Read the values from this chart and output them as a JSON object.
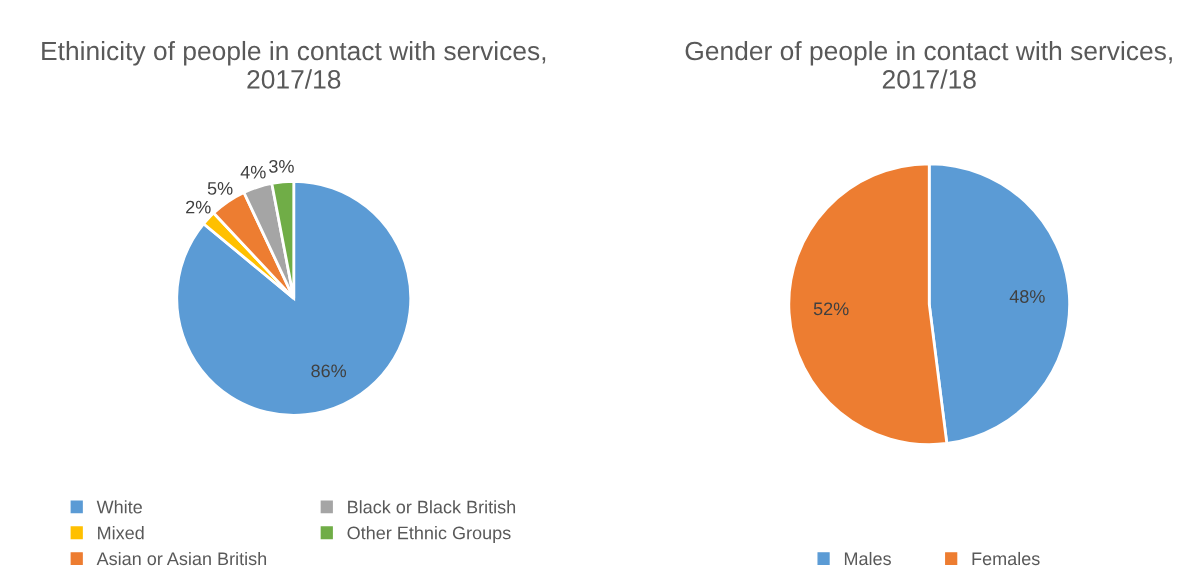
{
  "chart_data": [
    {
      "type": "pie",
      "title": "Ethinicity of people in contact with services, 2017/18",
      "categories": [
        "White",
        "Mixed",
        "Asian or Asian British",
        "Black or Black British",
        "Other Ethnic Groups"
      ],
      "values": [
        86,
        2,
        5,
        4,
        3
      ],
      "colors": [
        "#5b9bd5",
        "#ffc000",
        "#ed7d31",
        "#a5a5a5",
        "#70ad47"
      ],
      "value_labels": [
        "86%",
        "2%",
        "5%",
        "4%",
        "3%"
      ],
      "legend": "bottom"
    },
    {
      "type": "pie",
      "title": "Gender of people in contact with services, 2017/18",
      "categories": [
        "Males",
        "Females"
      ],
      "values": [
        48,
        52
      ],
      "colors": [
        "#5b9bd5",
        "#ed7d31"
      ],
      "value_labels": [
        "48%",
        "52%"
      ],
      "legend": "bottom"
    }
  ]
}
